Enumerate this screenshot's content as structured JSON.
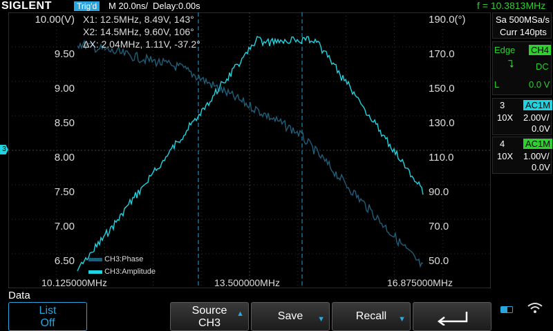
{
  "header": {
    "brand": "SIGLENT",
    "trigger_status": "Trig'd",
    "timebase": "M 20.0ns/",
    "delay": "Delay:0.00s",
    "frequency": "f = 10.3813MHz"
  },
  "plot": {
    "cursor_x1": "X1: 12.5MHz, 8.49V, 143°",
    "cursor_x2": "X2: 14.5MHz, 9.60V, 106°",
    "cursor_delta": "ΔX: 2.04MHz, 1.11V, -37.2°",
    "left_axis_labels": [
      "10.00(V)",
      "9.50",
      "9.00",
      "8.50",
      "8.00",
      "7.50",
      "7.00",
      "6.50"
    ],
    "right_axis_labels": [
      "190.0(°)",
      "170.0",
      "150.0",
      "130.0",
      "110.0",
      "90.0",
      "70.0",
      "50.0"
    ],
    "freq_labels": [
      "10.125000MHz",
      "13.500000MHz",
      "16.875000MHz"
    ],
    "legend": [
      {
        "name": "CH3:Phase",
        "color": "#1e5f7a"
      },
      {
        "name": "CH3:Amplitude",
        "color": "#1fd4e0"
      }
    ],
    "channel_marker": "3"
  },
  "right_panel": {
    "sample_rate": "Sa 500MSa/s",
    "curr_pts": "Curr 140pts",
    "trigger": {
      "mode": "Edge",
      "source": "CH4",
      "coupling": "DC",
      "level_label": "L",
      "level_value": "0.0 V"
    },
    "ch3": {
      "num": "3",
      "coupling": "AC1M",
      "probe": "10X",
      "scale": "2.00V/",
      "offset": "0.0V"
    },
    "ch4": {
      "num": "4",
      "coupling": "AC1M",
      "probe": "10X",
      "scale": "1.00V/",
      "offset": "0.0V"
    }
  },
  "menu": {
    "title": "Data",
    "list_l1": "List",
    "list_l2": "Off",
    "source_l1": "Source",
    "source_l2": "CH3",
    "save": "Save",
    "recall": "Recall"
  },
  "colors": {
    "amplitude": "#1fd4e0",
    "phase": "#1e5f7a",
    "accent": "#29a6e0",
    "freq": "#2ecf2e"
  }
}
